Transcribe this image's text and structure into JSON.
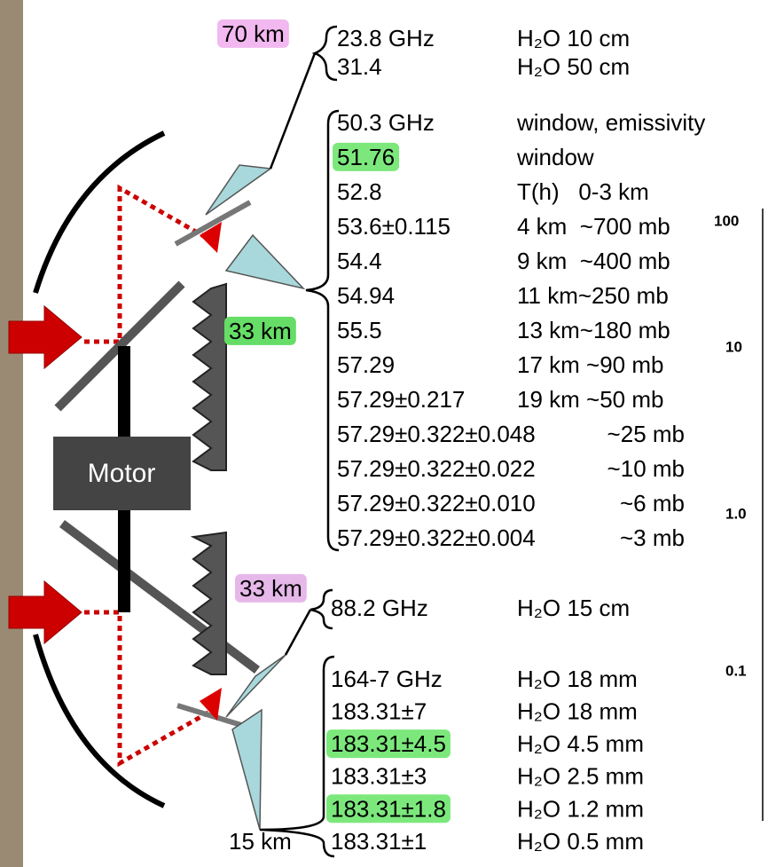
{
  "labels": {
    "upper_height": "70 km",
    "middle_height": "33 km",
    "lower_height": "33 km",
    "bottom_height": "15 km",
    "motor": "Motor"
  },
  "groups": [
    {
      "rows": [
        {
          "frequency": "23.8 GHz",
          "description": "H₂O 10 cm"
        },
        {
          "frequency": "31.4",
          "description": "H₂O 50 cm"
        }
      ]
    },
    {
      "rows": [
        {
          "frequency": "50.3 GHz",
          "description": "window, emissivity"
        },
        {
          "frequency": "51.76",
          "description": "window",
          "highlight": true
        },
        {
          "frequency": "52.8",
          "description": "T(h)   0-3 km"
        },
        {
          "frequency": "53.6±0.115",
          "description": "4 km  ~700 mb"
        },
        {
          "frequency": "54.4",
          "description": "9 km  ~400 mb"
        },
        {
          "frequency": "54.94",
          "description": "11 km~250 mb"
        },
        {
          "frequency": "55.5",
          "description": "13 km~180 mb"
        },
        {
          "frequency": "57.29",
          "description": "17 km ~90 mb"
        },
        {
          "frequency": "57.29±0.217",
          "description": "19 km ~50 mb"
        },
        {
          "frequency": "57.29±0.322±0.048",
          "description": "~25 mb"
        },
        {
          "frequency": "57.29±0.322±0.022",
          "description": "~10 mb"
        },
        {
          "frequency": "57.29±0.322±0.010",
          "description": "~6 mb"
        },
        {
          "frequency": "57.29±0.322±0.004",
          "description": "~3 mb"
        }
      ]
    },
    {
      "rows": [
        {
          "frequency": "88.2 GHz",
          "description": "H₂O 15 cm"
        }
      ]
    },
    {
      "rows": [
        {
          "frequency": "164-7 GHz",
          "description": "H₂O 18 mm"
        },
        {
          "frequency": "183.31±7",
          "description": "H₂O 18 mm"
        },
        {
          "frequency": "183.31±4.5",
          "description": "H₂O 4.5 mm",
          "highlight": true
        },
        {
          "frequency": "183.31±3",
          "description": "H₂O 2.5 mm"
        },
        {
          "frequency": "183.31±1.8",
          "description": "H₂O 1.2 mm",
          "highlight": true
        },
        {
          "frequency": "183.31±1",
          "description": "H₂O 0.5 mm"
        }
      ]
    }
  ],
  "side_axis_labels": [
    "100",
    "10",
    "1.0",
    "0.1"
  ]
}
